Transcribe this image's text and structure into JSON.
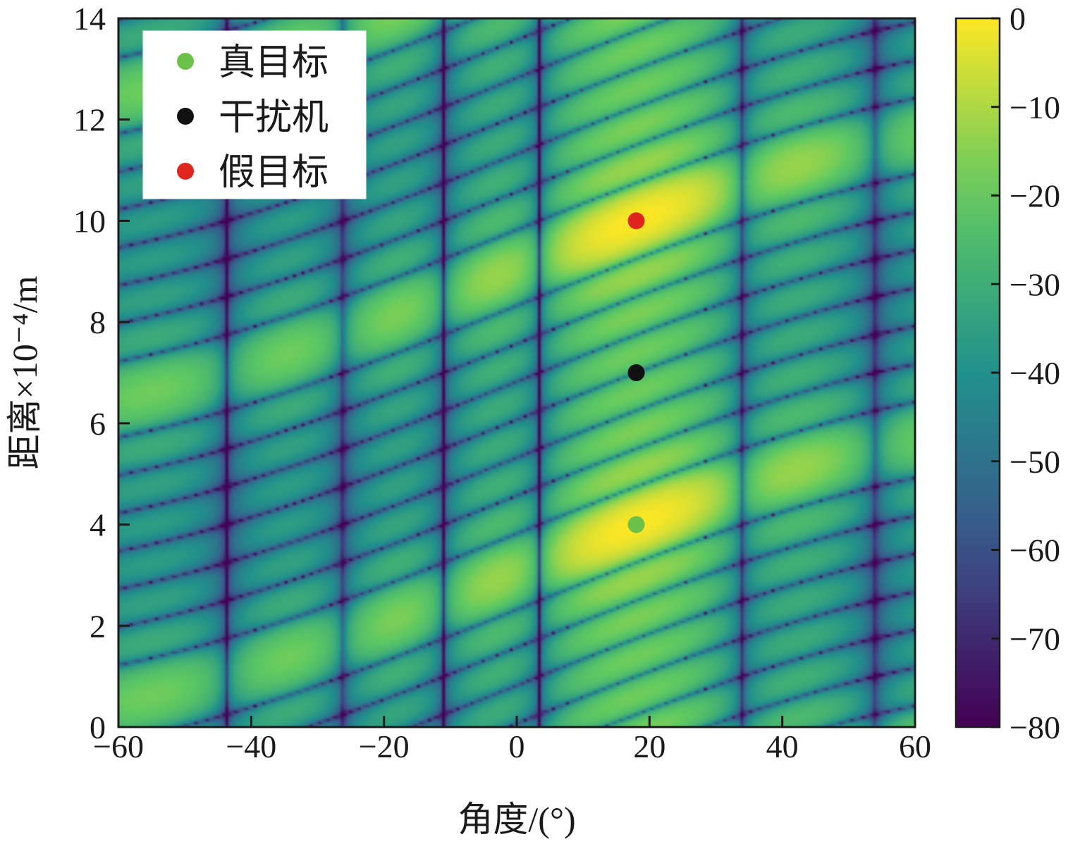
{
  "chart_data": {
    "type": "heatmap",
    "title": "",
    "xlabel": "角度/(°)",
    "ylabel": "距离×10⁻⁴/m",
    "xlim": [
      -60,
      60
    ],
    "ylim": [
      0,
      14
    ],
    "x_ticks": [
      "−60",
      "−40",
      "−20",
      "0",
      "20",
      "40",
      "60"
    ],
    "y_ticks": [
      "0",
      "2",
      "4",
      "6",
      "8",
      "10",
      "12",
      "14"
    ],
    "colorbar": {
      "range": [
        -80,
        0
      ],
      "ticks": [
        "0",
        "−10",
        "−20",
        "−30",
        "−40",
        "−50",
        "−60",
        "−70",
        "−80"
      ],
      "colormap": [
        "#440154",
        "#3b528b",
        "#21918c",
        "#5ec962",
        "#fde725"
      ]
    },
    "peak": {
      "angle": 18,
      "range": 10,
      "value_db": 0
    },
    "points": [
      {
        "name": "真目标",
        "x": 18,
        "y": 4,
        "color": "#6cc14a"
      },
      {
        "name": "干扰机",
        "x": 18,
        "y": 7,
        "color": "#111111"
      },
      {
        "name": "假目标",
        "x": 18,
        "y": 10,
        "color": "#e0251f"
      }
    ],
    "legend": {
      "position": "top-left",
      "entries": [
        "真目标",
        "干扰机",
        "假目标"
      ]
    },
    "grid": false
  }
}
